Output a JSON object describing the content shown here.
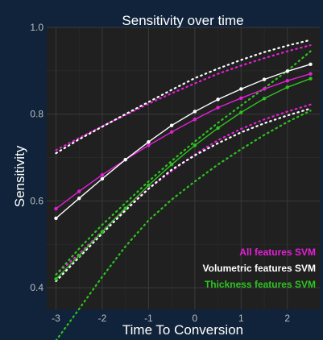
{
  "chart_data": {
    "type": "line",
    "title": "Sensitivity over time",
    "xlabel": "Time To Conversion",
    "ylabel": "Sensitivity",
    "xlim": [
      -3.2,
      2.7
    ],
    "ylim": [
      0.35,
      1.0
    ],
    "x_ticks": [
      -3,
      -2,
      -1,
      0,
      1,
      2
    ],
    "y_ticks": [
      0.4,
      0.6,
      0.8,
      1.0
    ],
    "y_tick_labels": [
      "0.4",
      "0.6",
      "0.8",
      "1.0"
    ],
    "grid": true,
    "legend": "bottom-right",
    "background": "#11233a",
    "panel_color": "#202020",
    "x": [
      -3,
      -2.5,
      -2,
      -1.5,
      -1,
      -0.5,
      0,
      0.5,
      1,
      1.5,
      2,
      2.5
    ],
    "series": [
      {
        "name": "All features SVM",
        "color": "#e41fd6",
        "values": [
          0.582,
          0.622,
          0.66,
          0.695,
          0.728,
          0.759,
          0.788,
          0.815,
          0.837,
          0.858,
          0.877,
          0.893
        ],
        "lower": [
          0.43,
          0.478,
          0.53,
          0.583,
          0.628,
          0.669,
          0.707,
          0.74,
          0.766,
          0.788,
          0.806,
          0.822
        ],
        "upper": [
          0.717,
          0.745,
          0.772,
          0.798,
          0.824,
          0.848,
          0.871,
          0.893,
          0.912,
          0.929,
          0.945,
          0.959
        ]
      },
      {
        "name": "Volumetric features SVM",
        "color": "#ffffff",
        "values": [
          0.56,
          0.606,
          0.651,
          0.695,
          0.736,
          0.774,
          0.806,
          0.834,
          0.858,
          0.88,
          0.899,
          0.915
        ],
        "lower": [
          0.415,
          0.47,
          0.525,
          0.578,
          0.628,
          0.672,
          0.705,
          0.733,
          0.758,
          0.779,
          0.797,
          0.813
        ],
        "upper": [
          0.71,
          0.742,
          0.771,
          0.8,
          0.828,
          0.856,
          0.883,
          0.905,
          0.925,
          0.943,
          0.958,
          0.971
        ]
      },
      {
        "name": "Thickness features SVM",
        "color": "#2ec41f",
        "values": [
          0.42,
          0.474,
          0.529,
          0.583,
          0.636,
          0.684,
          0.728,
          0.768,
          0.804,
          0.836,
          0.862,
          0.882
        ],
        "lower": [
          0.278,
          0.351,
          0.425,
          0.495,
          0.555,
          0.603,
          0.645,
          0.684,
          0.719,
          0.752,
          0.782,
          0.808
        ],
        "upper": [
          0.43,
          0.49,
          0.545,
          0.595,
          0.645,
          0.692,
          0.737,
          0.78,
          0.82,
          0.86,
          0.9,
          0.945
        ]
      }
    ]
  }
}
